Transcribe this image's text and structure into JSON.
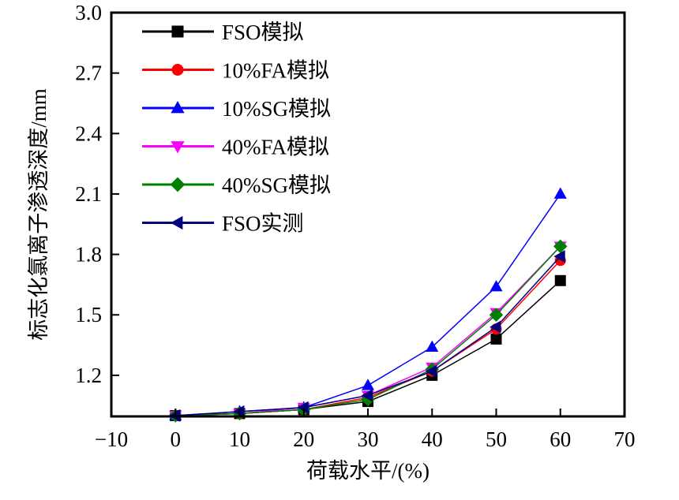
{
  "chart_data": {
    "type": "line",
    "title": "",
    "xlabel": "荷载水平/(%)",
    "ylabel": "标志化氯离子渗透深度/mm",
    "xlim": [
      -10,
      70
    ],
    "ylim": [
      0.996,
      3.0
    ],
    "xticks": [
      -10,
      0,
      10,
      20,
      30,
      40,
      50,
      60,
      70
    ],
    "xtick_labels": [
      "−10",
      "0",
      "10",
      "20",
      "30",
      "40",
      "50",
      "60",
      "70"
    ],
    "yticks": [
      1.2,
      1.5,
      1.8,
      2.1,
      2.4,
      2.7,
      3.0
    ],
    "ytick_labels": [
      "1.2",
      "1.5",
      "1.8",
      "2.1",
      "2.4",
      "2.7",
      "3.0"
    ],
    "grid": false,
    "legend_position": "top-left",
    "x": [
      0,
      10,
      20,
      30,
      40,
      50,
      60
    ],
    "series": [
      {
        "name": "FSO模拟",
        "color": "#000000",
        "marker": "square",
        "values": [
          1.0,
          1.01,
          1.03,
          1.07,
          1.2,
          1.38,
          1.67
        ]
      },
      {
        "name": "10%FA模拟",
        "color": "#ff0000",
        "marker": "circle",
        "values": [
          1.0,
          1.01,
          1.03,
          1.09,
          1.22,
          1.43,
          1.77
        ]
      },
      {
        "name": "10%SG模拟",
        "color": "#0000ff",
        "marker": "triangle-up",
        "values": [
          1.0,
          1.02,
          1.04,
          1.15,
          1.34,
          1.64,
          2.1
        ]
      },
      {
        "name": "40%FA模拟",
        "color": "#ff00ff",
        "marker": "triangle-down",
        "values": [
          1.0,
          1.01,
          1.04,
          1.1,
          1.24,
          1.51,
          1.84
        ]
      },
      {
        "name": "40%SG模拟",
        "color": "#008000",
        "marker": "diamond",
        "values": [
          1.0,
          1.01,
          1.03,
          1.08,
          1.23,
          1.5,
          1.84
        ]
      },
      {
        "name": "FSO实测",
        "color": "#000080",
        "marker": "triangle-left",
        "values": [
          1.0,
          1.02,
          1.04,
          1.1,
          1.22,
          1.44,
          1.79
        ]
      }
    ]
  }
}
